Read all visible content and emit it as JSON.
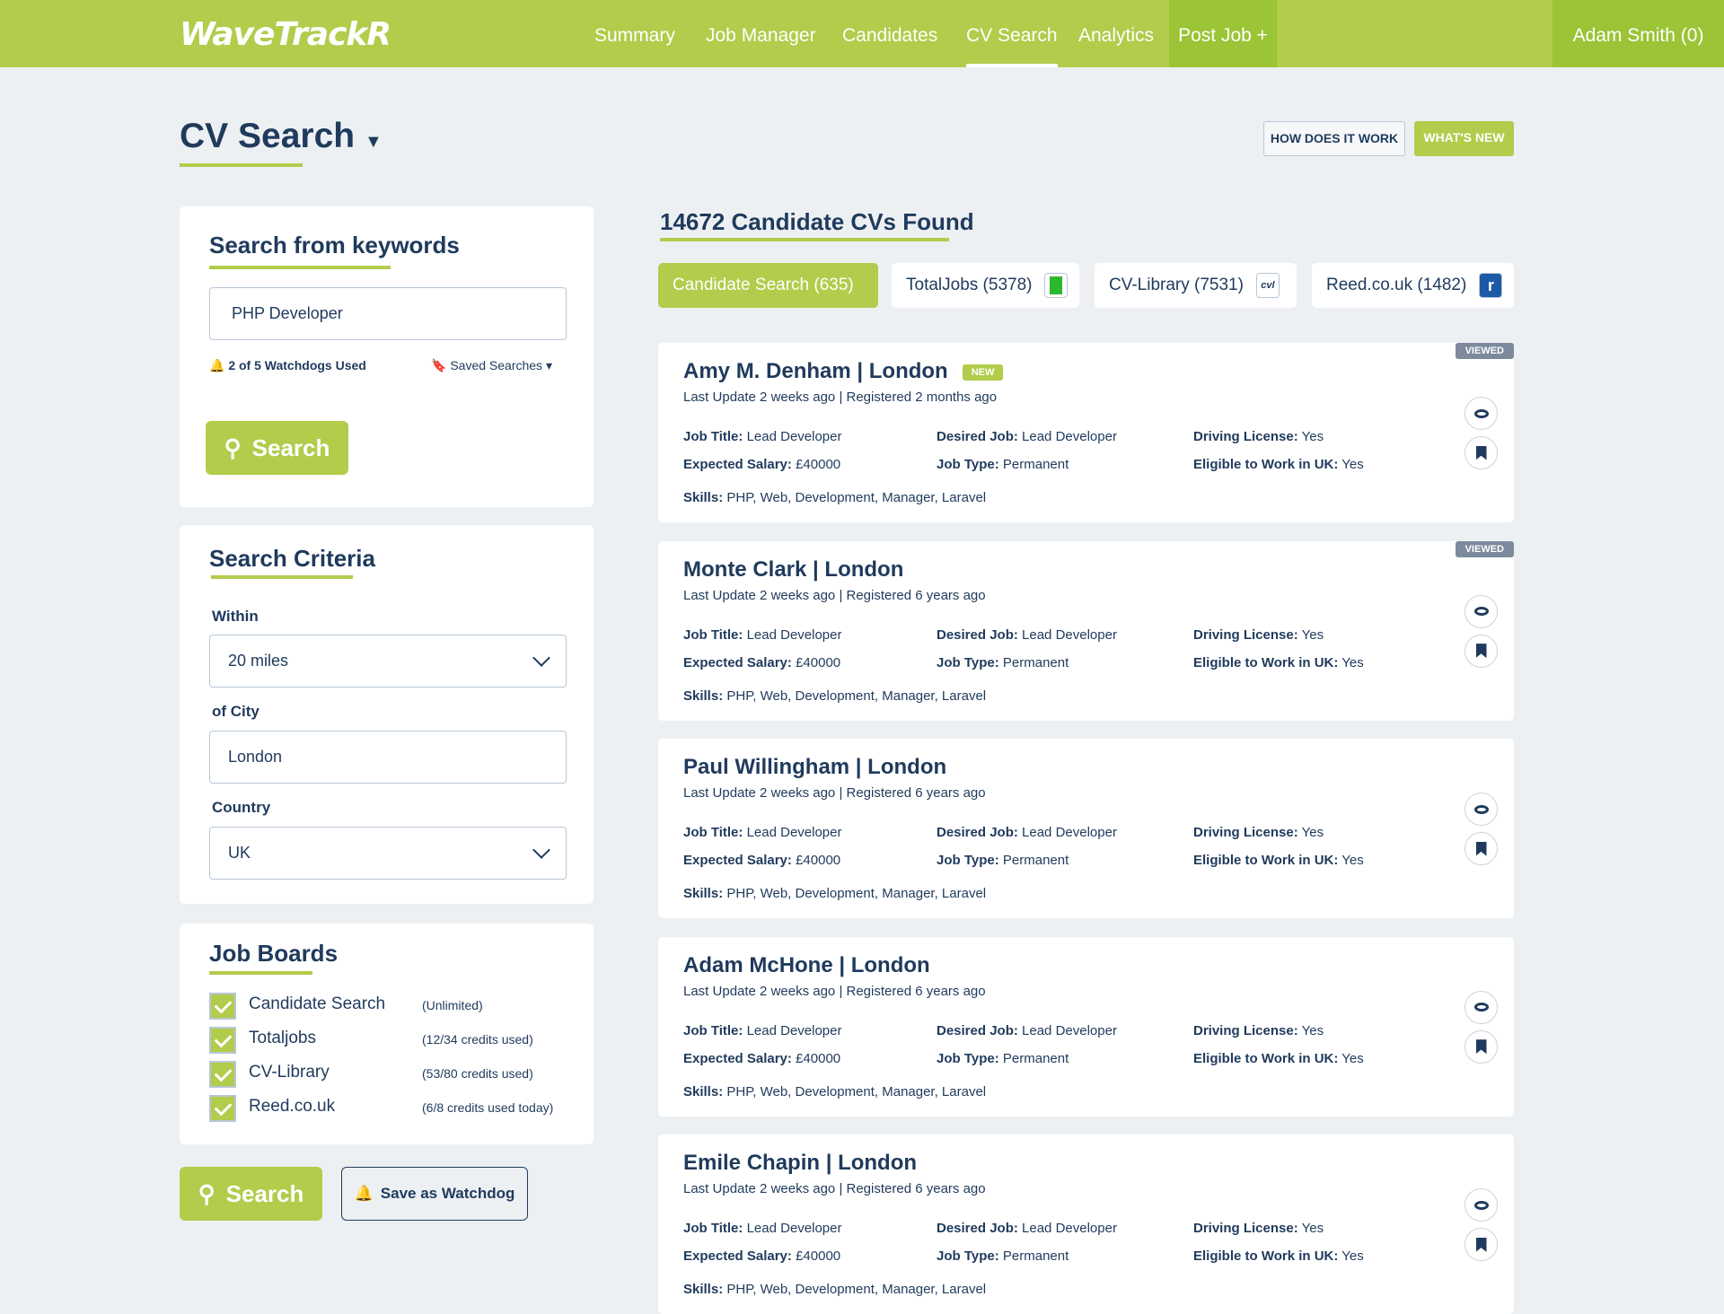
{
  "header": {
    "logo": "WaveTrackR",
    "nav": [
      "Summary",
      "Job Manager",
      "Candidates",
      "CV Search",
      "Analytics"
    ],
    "active": "CV Search",
    "post_job": "Post Job +",
    "user": "Adam Smith (0)"
  },
  "page": {
    "title": "CV Search",
    "how_button": "HOW DOES IT WORK",
    "whats_new_button": "WHAT'S NEW"
  },
  "keywords": {
    "heading": "Search from keywords",
    "value": "PHP Developer",
    "watchdogs": "2 of 5 Watchdogs Used",
    "saved_searches": "Saved Searches",
    "search_button": "Search"
  },
  "criteria": {
    "heading": "Search Criteria",
    "within_label": "Within",
    "within_value": "20 miles",
    "city_label": "of City",
    "city_value": "London",
    "country_label": "Country",
    "country_value": "UK"
  },
  "job_boards": {
    "heading": "Job Boards",
    "items": [
      {
        "label": "Candidate Search",
        "note": "(Unlimited)",
        "checked": true
      },
      {
        "label": "Totaljobs",
        "note": "(12/34 credits used)",
        "checked": true
      },
      {
        "label": "CV-Library",
        "note": "(53/80 credits used)",
        "checked": true
      },
      {
        "label": "Reed.co.uk",
        "note": "(6/8 credits used today)",
        "checked": true
      }
    ]
  },
  "actions": {
    "search": "Search",
    "watchdog": "Save as Watchdog"
  },
  "results": {
    "title": "14672 Candidate CVs Found",
    "tabs": [
      {
        "label": "Candidate Search (635)",
        "logo": ""
      },
      {
        "label": "TotalJobs (5378)",
        "logo": "T"
      },
      {
        "label": "CV-Library (7531)",
        "logo": "cvl"
      },
      {
        "label": "Reed.co.uk (1482)",
        "logo": "r"
      }
    ],
    "labels": {
      "job_title": "Job Title:",
      "desired_job": "Desired Job:",
      "driving": "Driving License:",
      "salary": "Expected Salary:",
      "job_type": "Job Type:",
      "eligible": "Eligible to Work in UK:",
      "skills": "Skills:",
      "new": "NEW",
      "viewed": "VIEWED"
    },
    "candidates": [
      {
        "name": "Amy M. Denham | London",
        "new": true,
        "viewed": true,
        "sub": "Last Update 2 weeks ago | Registered 2 months ago",
        "job_title": "Lead Developer",
        "desired_job": "Lead Developer",
        "driving": "Yes",
        "salary": "£40000",
        "job_type": "Permanent",
        "eligible": "Yes",
        "skills": "PHP, Web, Development, Manager, Laravel"
      },
      {
        "name": "Monte Clark | London",
        "new": false,
        "viewed": true,
        "sub": "Last Update 2 weeks ago | Registered 6 years ago",
        "job_title": "Lead Developer",
        "desired_job": "Lead Developer",
        "driving": "Yes",
        "salary": "£40000",
        "job_type": "Permanent",
        "eligible": "Yes",
        "skills": "PHP, Web, Development, Manager, Laravel"
      },
      {
        "name": "Paul Willingham | London",
        "new": false,
        "viewed": false,
        "sub": "Last Update 2 weeks ago | Registered 6 years ago",
        "job_title": "Lead Developer",
        "desired_job": "Lead Developer",
        "driving": "Yes",
        "salary": "£40000",
        "job_type": "Permanent",
        "eligible": "Yes",
        "skills": "PHP, Web, Development, Manager, Laravel"
      },
      {
        "name": "Adam McHone | London",
        "new": false,
        "viewed": false,
        "sub": "Last Update 2 weeks ago | Registered 6 years ago",
        "job_title": "Lead Developer",
        "desired_job": "Lead Developer",
        "driving": "Yes",
        "salary": "£40000",
        "job_type": "Permanent",
        "eligible": "Yes",
        "skills": "PHP, Web, Development, Manager, Laravel"
      },
      {
        "name": "Emile Chapin | London",
        "new": false,
        "viewed": false,
        "sub": "Last Update 2 weeks ago | Registered 6 years ago",
        "job_title": "Lead Developer",
        "desired_job": "Lead Developer",
        "driving": "Yes",
        "salary": "£40000",
        "job_type": "Permanent",
        "eligible": "Yes",
        "skills": "PHP, Web, Development, Manager, Laravel"
      }
    ]
  },
  "colors": {
    "brand": "#b2cc4b",
    "brand_dark": "#9bc436",
    "navy": "#1f3a5c",
    "background": "#edf0f3"
  }
}
